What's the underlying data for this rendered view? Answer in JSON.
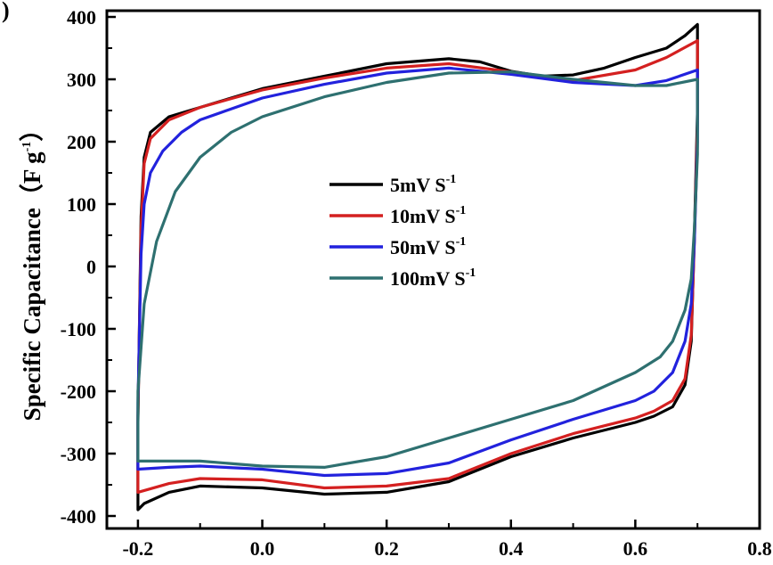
{
  "panel_label": ")",
  "chart_data": {
    "type": "line",
    "title": "",
    "xlabel": "",
    "ylabel": "Specific Capacitance（F g⁻¹）",
    "ylabel_parts": {
      "main": "Specific Capacitance（F g",
      "sup": "-1",
      "tail": "）"
    },
    "xlim": [
      -0.25,
      0.8
    ],
    "ylim": [
      -420,
      410
    ],
    "xticks": [
      -0.2,
      0.0,
      0.2,
      0.4,
      0.6,
      0.8
    ],
    "xtick_labels": [
      "-0.2",
      "0.0",
      "0.2",
      "0.4",
      "0.6",
      "0.8"
    ],
    "yticks": [
      -400,
      -300,
      -200,
      -100,
      0,
      100,
      200,
      300,
      400
    ],
    "ytick_labels": [
      "-400",
      "-300",
      "-200",
      "-100",
      "0",
      "100",
      "200",
      "300",
      "400"
    ],
    "grid": false,
    "legend_position": "center",
    "series": [
      {
        "name": "5mV S-1",
        "label_main": "5mV S",
        "label_sup": "-1",
        "color": "#000000",
        "x": [
          -0.2,
          -0.2,
          -0.195,
          -0.19,
          -0.18,
          -0.15,
          -0.1,
          0.0,
          0.1,
          0.2,
          0.3,
          0.35,
          0.4,
          0.45,
          0.5,
          0.55,
          0.6,
          0.65,
          0.68,
          0.7,
          0.7,
          0.695,
          0.69,
          0.68,
          0.66,
          0.63,
          0.6,
          0.5,
          0.4,
          0.3,
          0.2,
          0.1,
          0.0,
          -0.1,
          -0.15,
          -0.19,
          -0.2
        ],
        "y": [
          -385,
          -250,
          80,
          175,
          215,
          240,
          255,
          285,
          305,
          325,
          333,
          328,
          313,
          305,
          307,
          318,
          335,
          350,
          370,
          388,
          250,
          50,
          -120,
          -190,
          -225,
          -240,
          -250,
          -275,
          -305,
          -345,
          -362,
          -365,
          -355,
          -352,
          -362,
          -380,
          -390
        ]
      },
      {
        "name": "10mV S-1",
        "label_main": "10mV S",
        "label_sup": "-1",
        "color": "#d42020",
        "x": [
          -0.2,
          -0.2,
          -0.195,
          -0.19,
          -0.18,
          -0.15,
          -0.1,
          0.0,
          0.1,
          0.2,
          0.3,
          0.4,
          0.5,
          0.6,
          0.65,
          0.7,
          0.7,
          0.695,
          0.69,
          0.68,
          0.66,
          0.63,
          0.6,
          0.5,
          0.4,
          0.3,
          0.2,
          0.1,
          0.0,
          -0.1,
          -0.15,
          -0.2
        ],
        "y": [
          -360,
          -240,
          60,
          165,
          205,
          235,
          255,
          283,
          302,
          318,
          325,
          312,
          298,
          315,
          335,
          362,
          230,
          40,
          -110,
          -180,
          -215,
          -232,
          -243,
          -268,
          -300,
          -340,
          -352,
          -355,
          -342,
          -340,
          -348,
          -362
        ]
      },
      {
        "name": "50mV S-1",
        "label_main": "50mV S",
        "label_sup": "-1",
        "color": "#2222dd",
        "x": [
          -0.2,
          -0.2,
          -0.195,
          -0.19,
          -0.18,
          -0.16,
          -0.13,
          -0.1,
          0.0,
          0.1,
          0.2,
          0.3,
          0.4,
          0.5,
          0.6,
          0.65,
          0.7,
          0.7,
          0.695,
          0.69,
          0.68,
          0.66,
          0.63,
          0.6,
          0.5,
          0.4,
          0.3,
          0.2,
          0.1,
          0.0,
          -0.1,
          -0.15,
          -0.2
        ],
        "y": [
          -325,
          -220,
          20,
          100,
          150,
          185,
          215,
          235,
          270,
          292,
          310,
          318,
          308,
          295,
          290,
          298,
          315,
          200,
          40,
          -60,
          -120,
          -170,
          -200,
          -215,
          -245,
          -278,
          -315,
          -332,
          -335,
          -325,
          -320,
          -322,
          -325
        ]
      },
      {
        "name": "100mV S-1",
        "label_main": "100mV S",
        "label_sup": "-1",
        "color": "#2e7070",
        "x": [
          -0.2,
          -0.2,
          -0.19,
          -0.17,
          -0.14,
          -0.1,
          -0.05,
          0.0,
          0.1,
          0.2,
          0.3,
          0.4,
          0.5,
          0.6,
          0.65,
          0.7,
          0.7,
          0.695,
          0.69,
          0.68,
          0.66,
          0.64,
          0.6,
          0.5,
          0.4,
          0.3,
          0.2,
          0.1,
          0.0,
          -0.1,
          -0.15,
          -0.2
        ],
        "y": [
          -310,
          -200,
          -60,
          40,
          120,
          175,
          215,
          240,
          272,
          295,
          310,
          312,
          300,
          290,
          290,
          300,
          180,
          60,
          -20,
          -70,
          -120,
          -145,
          -170,
          -215,
          -245,
          -275,
          -305,
          -322,
          -320,
          -312,
          -312,
          -312
        ]
      }
    ]
  }
}
